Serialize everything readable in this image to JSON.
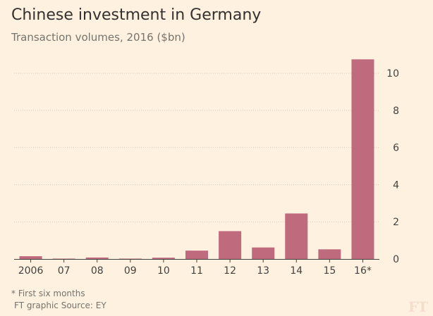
{
  "chart_data": {
    "type": "bar",
    "title": "Chinese investment in Germany",
    "subtitle": "Transaction volumes, 2016 ($bn)",
    "categories": [
      "2006",
      "07",
      "08",
      "09",
      "10",
      "11",
      "12",
      "13",
      "14",
      "15",
      "16*"
    ],
    "values": [
      0.15,
      0.02,
      0.08,
      0.02,
      0.07,
      0.45,
      1.5,
      0.62,
      2.45,
      0.52,
      10.75
    ],
    "xlabel": "",
    "ylabel": "",
    "ylim": [
      0,
      10.8
    ],
    "yticks": [
      0,
      2,
      4,
      6,
      8,
      10
    ],
    "grid": true,
    "y_axis_side": "right",
    "bar_color": "#c06a7e",
    "footnote": "* First six months",
    "source": "FT graphic   Source: EY"
  },
  "logo": "FT"
}
